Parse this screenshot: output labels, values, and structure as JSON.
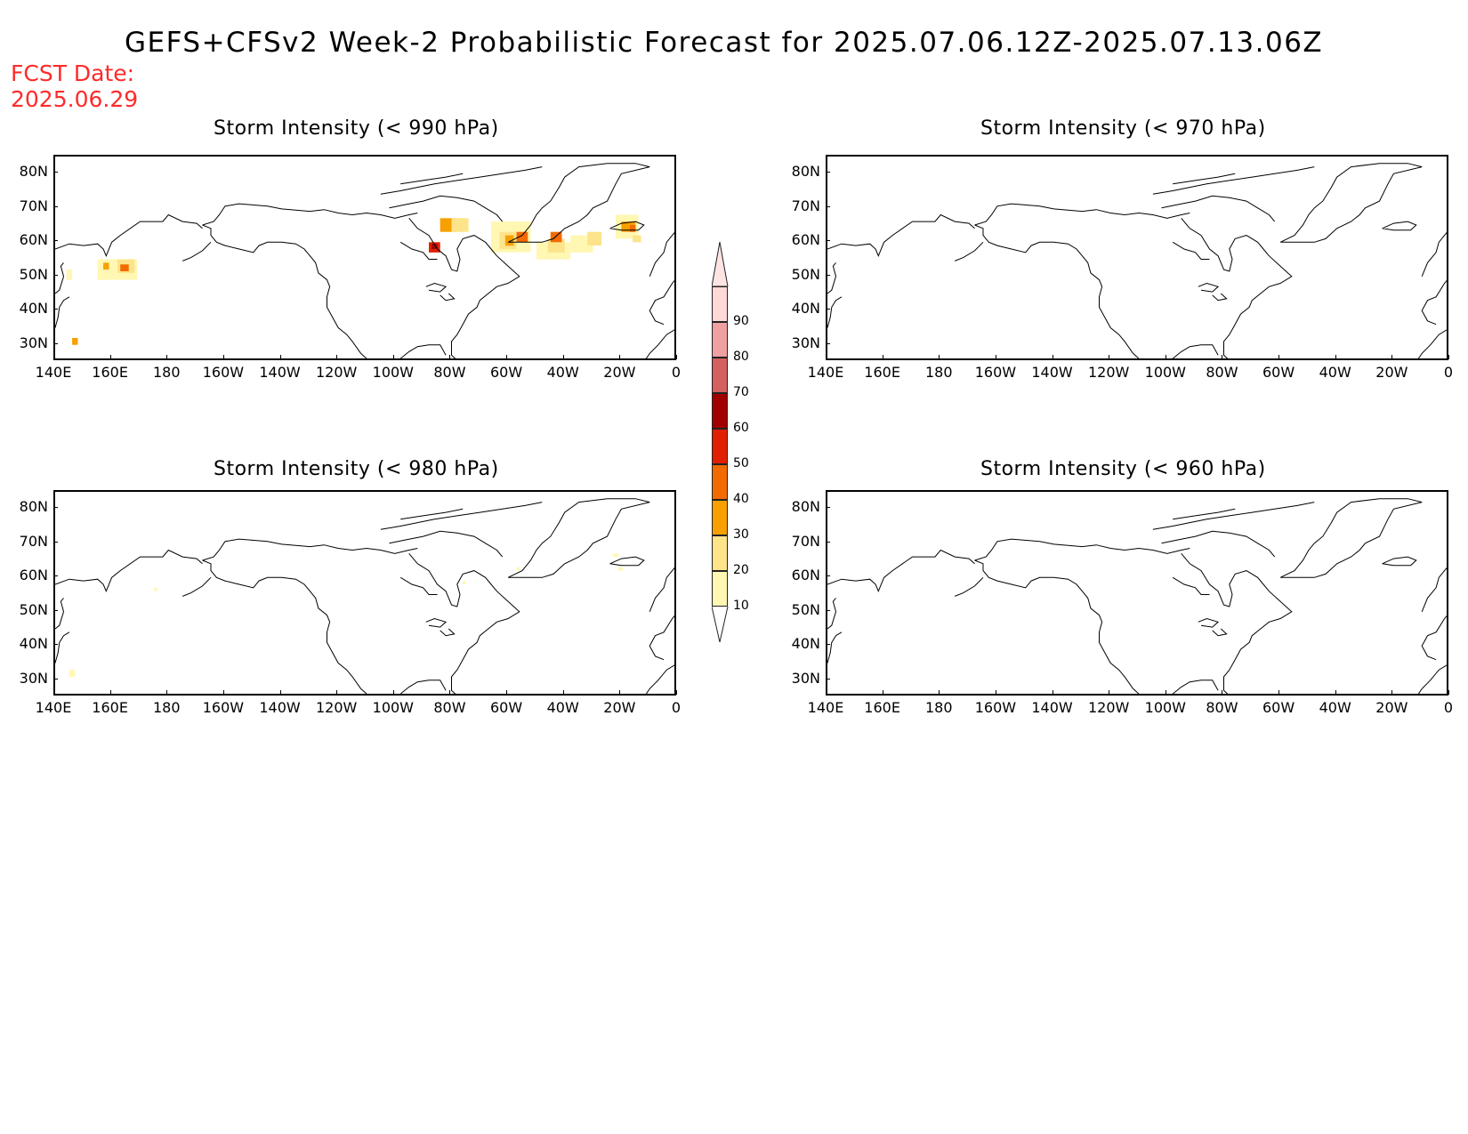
{
  "title": "GEFS+CFSv2 Week-2 Probabilistic Forecast for 2025.07.06.12Z-2025.07.13.06Z",
  "fcst_date_label": "FCST Date:",
  "fcst_date": "2025.06.29",
  "lat_ticks": [
    "80N",
    "70N",
    "60N",
    "50N",
    "40N",
    "30N"
  ],
  "lon_ticks": [
    "140E",
    "160E",
    "180",
    "160W",
    "140W",
    "120W",
    "100W",
    "80W",
    "60W",
    "40W",
    "20W",
    "0"
  ],
  "panels": [
    {
      "id": "p990",
      "title": "Storm Intensity (< 990 hPa)"
    },
    {
      "id": "p970",
      "title": "Storm Intensity (< 970 hPa)"
    },
    {
      "id": "p980",
      "title": "Storm Intensity (< 980 hPa)"
    },
    {
      "id": "p960",
      "title": "Storm Intensity (< 960 hPa)"
    }
  ],
  "colorbar": {
    "levels": [
      "10",
      "20",
      "30",
      "40",
      "50",
      "60",
      "70",
      "80",
      "90"
    ],
    "colors": [
      "#fff7b2",
      "#fde48a",
      "#f7a000",
      "#f36a00",
      "#e02000",
      "#a00000",
      "#d46060",
      "#f0a0a0",
      "#ffd8d8"
    ]
  }
}
